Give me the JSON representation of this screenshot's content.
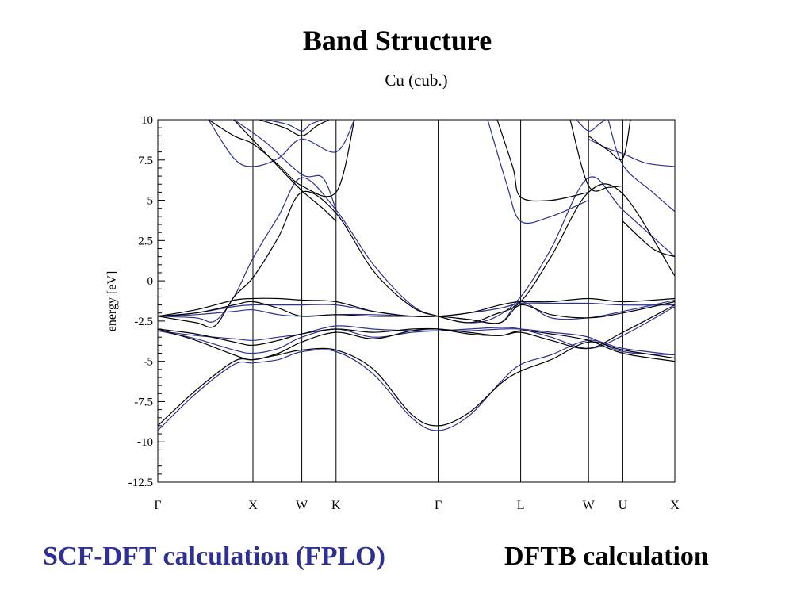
{
  "slide": {
    "title": "Band Structure"
  },
  "legend_captions": {
    "dft": "SCF-DFT calculation (FPLO)",
    "dftb": "DFTB calculation"
  },
  "colors": {
    "dft": "#2e3192",
    "dftb": "#000000"
  },
  "chart_data": {
    "type": "line",
    "title": "Cu (cub.)",
    "xlabel": "",
    "ylabel": "energy [eV]",
    "ylim": [
      -12.5,
      10
    ],
    "yticks": [
      10,
      7.5,
      5,
      2.5,
      0,
      -2.5,
      -5,
      -7.5,
      -10,
      -12.5
    ],
    "ytick_labels": [
      "10",
      "7.5",
      "5",
      "2.5",
      "0",
      "-2.5",
      "-5",
      "-7.5",
      "-10",
      "-12.5"
    ],
    "xlim": [
      0,
      8.15
    ],
    "kpoints": [
      {
        "label": "Γ",
        "x": 0
      },
      {
        "label": "X",
        "x": 1.5
      },
      {
        "label": "W",
        "x": 2.27
      },
      {
        "label": "K",
        "x": 2.81
      },
      {
        "label": "Γ",
        "x": 4.42
      },
      {
        "label": "L",
        "x": 5.72
      },
      {
        "label": "W",
        "x": 6.79
      },
      {
        "label": "U",
        "x": 7.33
      },
      {
        "label": "X",
        "x": 8.15
      }
    ],
    "grid": false,
    "series": [
      {
        "color": "#2e3192",
        "points": [
          [
            0,
            -9.3
          ],
          [
            0.6,
            -7.0
          ],
          [
            1.2,
            -5.2
          ],
          [
            1.5,
            -5.1
          ],
          [
            1.9,
            -4.9
          ],
          [
            2.27,
            -4.4
          ],
          [
            2.81,
            -4.4
          ],
          [
            3.4,
            -5.8
          ],
          [
            4.0,
            -8.5
          ],
          [
            4.42,
            -9.3
          ],
          [
            4.9,
            -8.4
          ],
          [
            5.4,
            -6.3
          ],
          [
            5.72,
            -5.2
          ],
          [
            6.2,
            -4.6
          ],
          [
            6.79,
            -3.7
          ],
          [
            7.33,
            -4.2
          ],
          [
            8.15,
            -4.6
          ]
        ]
      },
      {
        "color": "#2e3192",
        "points": [
          [
            0,
            -3.1
          ],
          [
            0.6,
            -3.6
          ],
          [
            1.2,
            -4.3
          ],
          [
            1.5,
            -4.5
          ],
          [
            1.9,
            -4.2
          ],
          [
            2.27,
            -3.5
          ],
          [
            2.81,
            -3.0
          ],
          [
            3.4,
            -3.5
          ],
          [
            4.0,
            -3.2
          ],
          [
            4.42,
            -3.1
          ],
          [
            4.9,
            -3.1
          ],
          [
            5.4,
            -3.0
          ],
          [
            5.72,
            -3.0
          ],
          [
            6.2,
            -3.2
          ],
          [
            6.79,
            -3.5
          ],
          [
            7.33,
            -4.4
          ],
          [
            8.15,
            -4.6
          ]
        ]
      },
      {
        "color": "#2e3192",
        "points": [
          [
            0,
            -3.1
          ],
          [
            0.6,
            -3.4
          ],
          [
            1.2,
            -3.6
          ],
          [
            1.5,
            -3.7
          ],
          [
            1.9,
            -3.5
          ],
          [
            2.27,
            -3.3
          ],
          [
            2.81,
            -2.8
          ],
          [
            3.4,
            -3.0
          ],
          [
            4.0,
            -3.1
          ],
          [
            4.42,
            -3.1
          ],
          [
            4.9,
            -3.0
          ],
          [
            5.4,
            -2.9
          ],
          [
            5.72,
            -3.0
          ],
          [
            6.2,
            -3.5
          ],
          [
            6.79,
            -4.2
          ],
          [
            7.33,
            -3.4
          ],
          [
            8.15,
            -1.6
          ]
        ]
      },
      {
        "color": "#2e3192",
        "points": [
          [
            0,
            -2.2
          ],
          [
            0.6,
            -2.0
          ],
          [
            1.2,
            -1.6
          ],
          [
            1.5,
            -1.5
          ],
          [
            1.9,
            -1.5
          ],
          [
            2.27,
            -1.5
          ],
          [
            2.81,
            -1.5
          ],
          [
            3.4,
            -1.9
          ],
          [
            4.0,
            -2.2
          ],
          [
            4.42,
            -2.2
          ],
          [
            4.9,
            -2.0
          ],
          [
            5.4,
            -1.7
          ],
          [
            5.72,
            -1.4
          ],
          [
            6.2,
            -1.4
          ],
          [
            6.79,
            -1.4
          ],
          [
            7.33,
            -1.5
          ],
          [
            8.15,
            -1.5
          ]
        ]
      },
      {
        "color": "#2e3192",
        "points": [
          [
            0,
            -2.2
          ],
          [
            0.6,
            -2.1
          ],
          [
            1.2,
            -1.9
          ],
          [
            1.5,
            -1.8
          ],
          [
            1.9,
            -2.1
          ],
          [
            2.27,
            -2.2
          ],
          [
            2.81,
            -2.1
          ],
          [
            3.4,
            -2.1
          ],
          [
            4.0,
            -2.2
          ],
          [
            4.42,
            -2.2
          ],
          [
            4.9,
            -2.4
          ],
          [
            5.4,
            -2.6
          ],
          [
            5.72,
            -1.3
          ],
          [
            6.2,
            -2.3
          ],
          [
            6.79,
            -2.3
          ],
          [
            7.33,
            -1.9
          ],
          [
            8.15,
            -1.2
          ]
        ]
      },
      {
        "color": "#2e3192",
        "points": [
          [
            0,
            -2.2
          ],
          [
            0.6,
            -2.3
          ],
          [
            0.9,
            -2.5
          ],
          [
            1.2,
            -1.0
          ],
          [
            1.5,
            1.4
          ],
          [
            1.9,
            4.0
          ],
          [
            2.27,
            6.4
          ],
          [
            2.81,
            4.4
          ],
          [
            3.4,
            1.0
          ],
          [
            4.0,
            -1.5
          ],
          [
            4.42,
            -2.2
          ],
          [
            4.9,
            -2.6
          ],
          [
            5.3,
            -2.3
          ],
          [
            5.72,
            -1.0
          ],
          [
            6.2,
            2.0
          ],
          [
            6.79,
            6.4
          ],
          [
            7.33,
            4.4
          ],
          [
            8.15,
            1.5
          ]
        ]
      },
      {
        "color": "#2e3192",
        "points": [
          [
            0.8,
            10
          ],
          [
            1.2,
            7.6
          ],
          [
            1.5,
            7.1
          ],
          [
            1.9,
            7.6
          ],
          [
            2.27,
            8.8
          ],
          [
            2.81,
            8.0
          ],
          [
            3.1,
            10
          ]
        ]
      },
      {
        "color": "#2e3192",
        "points": [
          [
            1.2,
            10
          ],
          [
            1.7,
            8.6
          ],
          [
            2.27,
            6.6
          ],
          [
            2.6,
            6.4
          ],
          [
            2.81,
            4.4
          ]
        ]
      },
      {
        "color": "#2e3192",
        "points": [
          [
            1.7,
            10
          ],
          [
            2.05,
            9.7
          ],
          [
            2.27,
            9.3
          ],
          [
            2.4,
            9.7
          ],
          [
            2.6,
            10
          ]
        ]
      },
      {
        "color": "#2e3192",
        "points": [
          [
            5.2,
            10
          ],
          [
            5.5,
            6.0
          ],
          [
            5.72,
            3.7
          ],
          [
            6.2,
            4.0
          ],
          [
            6.79,
            5.0
          ]
        ]
      },
      {
        "color": "#2e3192",
        "points": [
          [
            6.79,
            8.8
          ],
          [
            7.1,
            8.2
          ],
          [
            7.33,
            7.9
          ],
          [
            7.7,
            7.3
          ],
          [
            8.15,
            7.1
          ]
        ]
      },
      {
        "color": "#2e3192",
        "points": [
          [
            6.6,
            10
          ],
          [
            6.79,
            9.3
          ],
          [
            6.95,
            9.7
          ],
          [
            7.05,
            10
          ]
        ]
      },
      {
        "color": "#2e3192",
        "points": [
          [
            7.1,
            10
          ],
          [
            7.33,
            7.2
          ],
          [
            7.8,
            5.5
          ],
          [
            8.15,
            4.3
          ]
        ]
      },
      {
        "color": "#000000",
        "points": [
          [
            0,
            -9.0
          ],
          [
            0.6,
            -6.8
          ],
          [
            1.2,
            -5.0
          ],
          [
            1.5,
            -4.9
          ],
          [
            1.9,
            -4.6
          ],
          [
            2.27,
            -4.3
          ],
          [
            2.81,
            -4.3
          ],
          [
            3.4,
            -5.5
          ],
          [
            4.0,
            -8.3
          ],
          [
            4.42,
            -9.0
          ],
          [
            4.9,
            -8.2
          ],
          [
            5.4,
            -6.4
          ],
          [
            5.72,
            -5.6
          ],
          [
            6.2,
            -4.9
          ],
          [
            6.79,
            -3.8
          ],
          [
            7.33,
            -4.3
          ],
          [
            8.15,
            -4.8
          ]
        ]
      },
      {
        "color": "#000000",
        "points": [
          [
            0,
            -3.0
          ],
          [
            0.6,
            -3.7
          ],
          [
            1.2,
            -4.6
          ],
          [
            1.5,
            -4.9
          ],
          [
            1.9,
            -4.5
          ],
          [
            2.27,
            -3.8
          ],
          [
            2.81,
            -3.2
          ],
          [
            3.4,
            -3.6
          ],
          [
            4.0,
            -3.1
          ],
          [
            4.42,
            -3.0
          ],
          [
            4.9,
            -3.2
          ],
          [
            5.4,
            -3.4
          ],
          [
            5.72,
            -3.1
          ],
          [
            6.2,
            -3.3
          ],
          [
            6.79,
            -3.7
          ],
          [
            7.33,
            -4.5
          ],
          [
            8.15,
            -5.0
          ]
        ]
      },
      {
        "color": "#000000",
        "points": [
          [
            0,
            -3.0
          ],
          [
            0.6,
            -3.3
          ],
          [
            1.2,
            -3.8
          ],
          [
            1.5,
            -4.0
          ],
          [
            1.9,
            -3.7
          ],
          [
            2.27,
            -3.3
          ],
          [
            2.81,
            -3.0
          ],
          [
            3.4,
            -3.2
          ],
          [
            4.0,
            -3.0
          ],
          [
            4.42,
            -3.0
          ],
          [
            4.9,
            -3.3
          ],
          [
            5.4,
            -3.4
          ],
          [
            5.72,
            -3.2
          ],
          [
            6.2,
            -3.7
          ],
          [
            6.79,
            -4.2
          ],
          [
            7.33,
            -3.2
          ],
          [
            8.15,
            -1.5
          ]
        ]
      },
      {
        "color": "#000000",
        "points": [
          [
            0,
            -2.2
          ],
          [
            0.6,
            -1.8
          ],
          [
            1.2,
            -1.2
          ],
          [
            1.5,
            -1.1
          ],
          [
            1.9,
            -1.1
          ],
          [
            2.27,
            -1.2
          ],
          [
            2.81,
            -1.3
          ],
          [
            3.4,
            -1.9
          ],
          [
            4.0,
            -2.2
          ],
          [
            4.42,
            -2.2
          ],
          [
            4.9,
            -2.0
          ],
          [
            5.4,
            -1.5
          ],
          [
            5.72,
            -1.3
          ],
          [
            6.2,
            -1.3
          ],
          [
            6.79,
            -1.1
          ],
          [
            7.33,
            -1.3
          ],
          [
            8.15,
            -1.1
          ]
        ]
      },
      {
        "color": "#000000",
        "points": [
          [
            0,
            -2.2
          ],
          [
            0.6,
            -2.0
          ],
          [
            1.2,
            -1.5
          ],
          [
            1.5,
            -1.3
          ],
          [
            1.9,
            -1.7
          ],
          [
            2.27,
            -2.2
          ],
          [
            2.81,
            -2.1
          ],
          [
            3.4,
            -2.2
          ],
          [
            4.0,
            -2.2
          ],
          [
            4.42,
            -2.2
          ],
          [
            4.9,
            -2.4
          ],
          [
            5.4,
            -2.6
          ],
          [
            5.72,
            -1.5
          ],
          [
            6.2,
            -2.1
          ],
          [
            6.79,
            -2.3
          ],
          [
            7.33,
            -2.0
          ],
          [
            8.15,
            -1.3
          ]
        ]
      },
      {
        "color": "#000000",
        "points": [
          [
            0,
            -2.2
          ],
          [
            0.6,
            -2.6
          ],
          [
            0.9,
            -2.8
          ],
          [
            1.2,
            -1.0
          ],
          [
            1.5,
            0.2
          ],
          [
            1.9,
            2.7
          ],
          [
            2.27,
            5.5
          ],
          [
            2.81,
            4.2
          ],
          [
            3.4,
            0.6
          ],
          [
            4.0,
            -1.6
          ],
          [
            4.42,
            -2.2
          ],
          [
            4.9,
            -2.6
          ],
          [
            5.3,
            -2.1
          ],
          [
            5.72,
            -1.3
          ],
          [
            6.2,
            1.5
          ],
          [
            6.79,
            5.5
          ],
          [
            7.33,
            5.4
          ],
          [
            8.15,
            0.3
          ]
        ]
      },
      {
        "color": "#000000",
        "points": [
          [
            0.8,
            10
          ],
          [
            1.2,
            9.0
          ],
          [
            1.5,
            8.5
          ],
          [
            1.9,
            7.2
          ],
          [
            2.27,
            5.9
          ],
          [
            2.81,
            5.5
          ],
          [
            3.1,
            10
          ]
        ]
      },
      {
        "color": "#000000",
        "points": [
          [
            1.2,
            10
          ],
          [
            1.8,
            7.5
          ],
          [
            2.27,
            5.6
          ],
          [
            2.6,
            4.5
          ],
          [
            2.81,
            3.7
          ]
        ]
      },
      {
        "color": "#000000",
        "points": [
          [
            1.6,
            10
          ],
          [
            2.0,
            9.5
          ],
          [
            2.27,
            9.0
          ],
          [
            2.5,
            9.6
          ],
          [
            2.7,
            10
          ]
        ]
      },
      {
        "color": "#000000",
        "points": [
          [
            5.35,
            10
          ],
          [
            5.6,
            7.0
          ],
          [
            5.72,
            5.2
          ],
          [
            6.2,
            5.0
          ],
          [
            6.79,
            5.5
          ]
        ]
      },
      {
        "color": "#000000",
        "points": [
          [
            6.79,
            9.0
          ],
          [
            7.1,
            8.1
          ],
          [
            7.33,
            7.6
          ],
          [
            7.45,
            10
          ]
        ]
      },
      {
        "color": "#000000",
        "points": [
          [
            6.5,
            10
          ],
          [
            6.79,
            5.9
          ],
          [
            7.1,
            5.8
          ],
          [
            7.33,
            5.9
          ]
        ]
      },
      {
        "color": "#000000",
        "points": [
          [
            7.33,
            3.7
          ],
          [
            7.8,
            2.0
          ],
          [
            8.15,
            1.5
          ]
        ]
      }
    ]
  }
}
